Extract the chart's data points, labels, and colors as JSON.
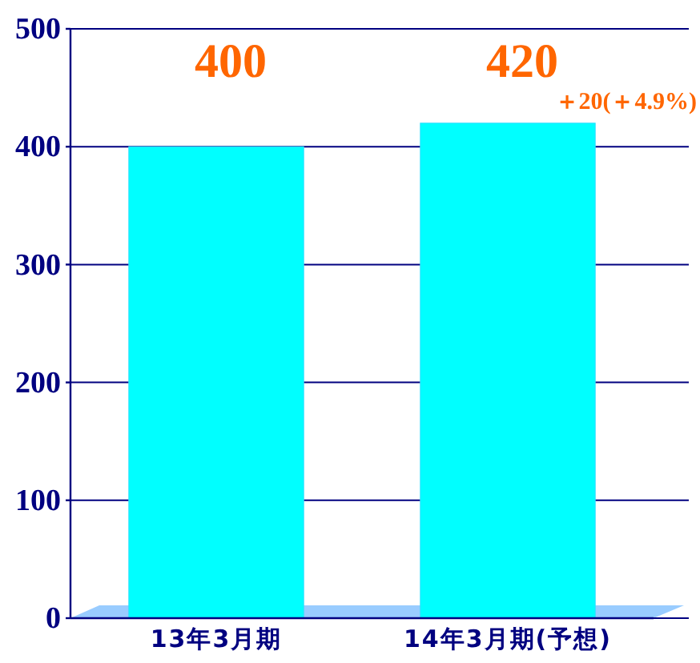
{
  "chart_data": {
    "type": "bar",
    "categories": [
      "13年3月期",
      "14年3月期(予想)"
    ],
    "values": [
      400,
      420
    ],
    "color": "#00ffff",
    "ylim": [
      0,
      500
    ],
    "yticks": [
      0,
      100,
      200,
      300,
      400,
      500
    ],
    "grid": "y",
    "data_labels": true,
    "annotations": [
      "＋20(＋4.9%)"
    ]
  }
}
